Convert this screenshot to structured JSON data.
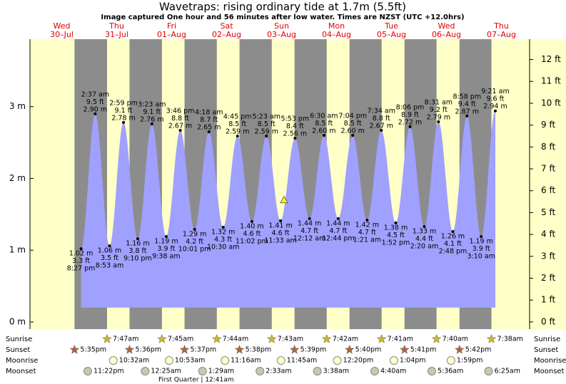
{
  "chart_data": {
    "type": "tide",
    "title": "Wavetraps: rising  ordinary tide at 1.7m (5.5ft)",
    "subtitle": "Image captured One hour and 56 minutes after low water. Times are NZST (UTC +12.0hrs)",
    "current_height": 1.7,
    "days": [
      {
        "name": "Wed",
        "date": "30–Jul"
      },
      {
        "name": "Thu",
        "date": "31–Jul"
      },
      {
        "name": "Fri",
        "date": "01–Aug"
      },
      {
        "name": "Sat",
        "date": "02–Aug"
      },
      {
        "name": "Sun",
        "date": "03–Aug"
      },
      {
        "name": "Mon",
        "date": "04–Aug"
      },
      {
        "name": "Tue",
        "date": "05–Aug"
      },
      {
        "name": "Wed",
        "date": "06–Aug"
      },
      {
        "name": "Thu",
        "date": "07–Aug"
      }
    ],
    "ylim": [
      -0.1,
      3.94
    ],
    "yticks": [
      {
        "value": 0,
        "label": "0 m"
      },
      {
        "value": 1,
        "label": "1 m"
      },
      {
        "value": 2,
        "label": "2 m"
      },
      {
        "value": 3,
        "label": "3 m"
      }
    ],
    "y2lim": [
      -0.33,
      12.93
    ],
    "y2ticks": [
      {
        "value": 0,
        "label": "0 ft"
      },
      {
        "value": 1,
        "label": "1 ft"
      },
      {
        "value": 2,
        "label": "2 ft"
      },
      {
        "value": 3,
        "label": "3 ft"
      },
      {
        "value": 4,
        "label": "4 ft"
      },
      {
        "value": 5,
        "label": "5 ft"
      },
      {
        "value": 6,
        "label": "6 ft"
      },
      {
        "value": 7,
        "label": "7 ft"
      },
      {
        "value": 8,
        "label": "8 ft"
      },
      {
        "value": 9,
        "label": "9 ft"
      },
      {
        "value": 10,
        "label": "10 ft"
      },
      {
        "value": 11,
        "label": "11 ft"
      },
      {
        "value": 12,
        "label": "12 ft"
      }
    ],
    "tides": [
      {
        "time": "8:27 pm",
        "height": 1.02,
        "height_label": "1.02 m",
        "ft_label": "3.3 ft"
      },
      {
        "time": "2:37 am",
        "height": 2.9,
        "height_label": "2.90 m",
        "ft_label": "9.5 ft"
      },
      {
        "time": "8:53 am",
        "height": 1.06,
        "height_label": "1.06 m",
        "ft_label": "3.5 ft"
      },
      {
        "time": "2:59 pm",
        "height": 2.78,
        "height_label": "2.78 m",
        "ft_label": "9.1 ft"
      },
      {
        "time": "9:10 pm",
        "height": 1.16,
        "height_label": "1.16 m",
        "ft_label": "3.8 ft"
      },
      {
        "time": "3:23 am",
        "height": 2.76,
        "height_label": "2.76 m",
        "ft_label": "9.1 ft"
      },
      {
        "time": "9:38 am",
        "height": 1.19,
        "height_label": "1.19 m",
        "ft_label": "3.9 ft"
      },
      {
        "time": "3:46 pm",
        "height": 2.67,
        "height_label": "2.67 m",
        "ft_label": "8.8 ft"
      },
      {
        "time": "10:01 pm",
        "height": 1.29,
        "height_label": "1.29 m",
        "ft_label": "4.2 ft"
      },
      {
        "time": "4:18 am",
        "height": 2.65,
        "height_label": "2.65 m",
        "ft_label": "8.7 ft"
      },
      {
        "time": "10:30 am",
        "height": 1.32,
        "height_label": "1.32 m",
        "ft_label": "4.3 ft"
      },
      {
        "time": "4:45 pm",
        "height": 2.59,
        "height_label": "2.59 m",
        "ft_label": "8.5 ft"
      },
      {
        "time": "11:02 pm",
        "height": 1.4,
        "height_label": "1.40 m",
        "ft_label": "4.6 ft"
      },
      {
        "time": "5:23 am",
        "height": 2.59,
        "height_label": "2.59 m",
        "ft_label": "8.5 ft"
      },
      {
        "time": "11:33 am",
        "height": 1.41,
        "height_label": "1.41 m",
        "ft_label": "4.6 ft"
      },
      {
        "time": "5:53 pm",
        "height": 2.56,
        "height_label": "2.56 m",
        "ft_label": "8.4 ft"
      },
      {
        "time": "12:12 am",
        "height": 1.44,
        "height_label": "1.44 m",
        "ft_label": "4.7 ft"
      },
      {
        "time": "6:30 am",
        "height": 2.6,
        "height_label": "2.60 m",
        "ft_label": "8.5 ft"
      },
      {
        "time": "12:44 pm",
        "height": 1.44,
        "height_label": "1.44 m",
        "ft_label": "4.7 ft"
      },
      {
        "time": "7:04 pm",
        "height": 2.6,
        "height_label": "2.60 m",
        "ft_label": "8.5 ft"
      },
      {
        "time": "1:21 am",
        "height": 1.42,
        "height_label": "1.42 m",
        "ft_label": "4.7 ft"
      },
      {
        "time": "7:34 am",
        "height": 2.67,
        "height_label": "2.67 m",
        "ft_label": "8.8 ft"
      },
      {
        "time": "1:52 pm",
        "height": 1.38,
        "height_label": "1.38 m",
        "ft_label": "4.5 ft"
      },
      {
        "time": "8:06 pm",
        "height": 2.72,
        "height_label": "2.72 m",
        "ft_label": "8.9 ft"
      },
      {
        "time": "2:20 am",
        "height": 1.33,
        "height_label": "1.33 m",
        "ft_label": "4.4 ft"
      },
      {
        "time": "8:31 am",
        "height": 2.79,
        "height_label": "2.79 m",
        "ft_label": "9.2 ft"
      },
      {
        "time": "2:48 pm",
        "height": 1.26,
        "height_label": "1.26 m",
        "ft_label": "4.1 ft"
      },
      {
        "time": "8:58 pm",
        "height": 2.87,
        "height_label": "2.87 m",
        "ft_label": "9.4 ft"
      },
      {
        "time": "3:10 am",
        "height": 1.19,
        "height_label": "1.19 m",
        "ft_label": "3.9 ft"
      },
      {
        "time": "9:21 am",
        "height": 2.94,
        "height_label": "2.94 m",
        "ft_label": "9.6 ft"
      }
    ],
    "row_labels": {
      "sunrise": "Sunrise",
      "sunset": "Sunset",
      "moonrise": "Moonrise",
      "moonset": "Moonset"
    },
    "sunrise": [
      null,
      "7:47am",
      "7:45am",
      "7:44am",
      "7:43am",
      "7:42am",
      "7:41am",
      "7:40am",
      "7:38am"
    ],
    "sunset": [
      "5:35pm",
      "5:36pm",
      "5:37pm",
      "5:38pm",
      "5:39pm",
      "5:40pm",
      "5:41pm",
      "5:42pm",
      null
    ],
    "moonrise": [
      null,
      "10:32am",
      "10:53am",
      "11:16am",
      "11:45am",
      "12:20pm",
      "1:04pm",
      "1:59pm",
      null
    ],
    "moonset": [
      "11:22pm",
      null,
      "12:25am",
      "1:29am",
      "2:33am",
      "3:38am",
      "4:40am",
      "5:36am",
      "6:25am"
    ],
    "moon_phase": "First Quarter | 12:41am"
  }
}
